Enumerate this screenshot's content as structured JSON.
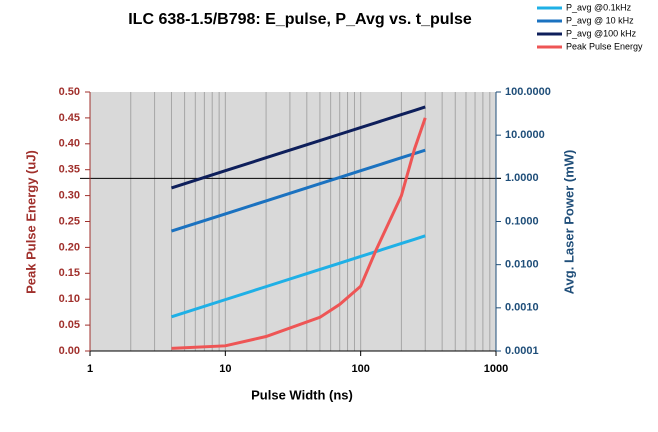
{
  "chart_data": {
    "type": "line",
    "title": "ILC 638-1.5/B798: E_pulse, P_Avg vs. t_pulse",
    "xlabel": "Pulse Width (ns)",
    "ylabel": "Peak Pulse Energy (uJ)",
    "y2label": "Avg. Laser Power (mW)",
    "xscale": "log",
    "y2scale": "log",
    "xlim": [
      1,
      1000
    ],
    "xticks": [
      1,
      10,
      100,
      1000
    ],
    "xminorticks": [
      2,
      3,
      4,
      5,
      6,
      7,
      8,
      9,
      20,
      30,
      40,
      50,
      60,
      70,
      80,
      90,
      200,
      300,
      400,
      500,
      600,
      700,
      800,
      900
    ],
    "ylim": [
      0,
      0.5
    ],
    "yticks": [
      {
        "value": 0,
        "label": "0.00"
      },
      0.05,
      {
        "value": 0.1,
        "label": "0.10"
      },
      0.15,
      {
        "value": 0.2,
        "label": "0.20"
      },
      0.25,
      {
        "value": 0.3,
        "label": "0.30"
      },
      0.35,
      {
        "value": 0.4,
        "label": "0.40"
      },
      0.45,
      {
        "value": 0.5,
        "label": "0.50"
      }
    ],
    "y2lim": [
      0.0001,
      100
    ],
    "y2ticks": [
      {
        "value": 0.0001,
        "label": "0.0001"
      },
      {
        "value": 0.001,
        "label": "0.0010"
      },
      {
        "value": 0.01,
        "label": "0.0100"
      },
      {
        "value": 0.1,
        "label": "0.1000"
      },
      {
        "value": 1,
        "label": "1.0000"
      },
      {
        "value": 10,
        "label": "10.0000"
      },
      {
        "value": 100,
        "label": "100.0000"
      }
    ],
    "y2_crossing": 1,
    "grid": true,
    "legend": "top-right",
    "x": [
      4,
      10,
      20,
      50,
      70,
      100,
      130,
      200,
      250,
      300
    ],
    "series": [
      {
        "name": "P_avg @0.1kHz",
        "color": "#1fb0e6",
        "axis": "y2",
        "values": [
          0.00062,
          0.00155,
          0.0031,
          0.00775,
          0.01085,
          0.0155,
          0.02015,
          0.031,
          0.03875,
          0.0465
        ]
      },
      {
        "name": "P_avg @ 10 kHz",
        "color": "#1b72c0",
        "axis": "y2",
        "values": [
          0.06,
          0.15,
          0.3,
          0.75,
          1.05,
          1.5,
          1.95,
          3,
          3.75,
          4.5
        ]
      },
      {
        "name": "P_avg @100 kHz",
        "color": "#0e1f5b",
        "axis": "y2",
        "values": [
          0.6,
          1.5,
          3,
          7.5,
          10.5,
          15,
          19.5,
          30,
          37.5,
          45
        ]
      },
      {
        "name": "Peak Pulse Energy",
        "color": "#ee5555",
        "values": [
          0.005,
          0.01,
          0.028,
          0.065,
          0.09,
          0.125,
          0.195,
          0.3,
          0.39,
          0.45
        ]
      }
    ]
  }
}
